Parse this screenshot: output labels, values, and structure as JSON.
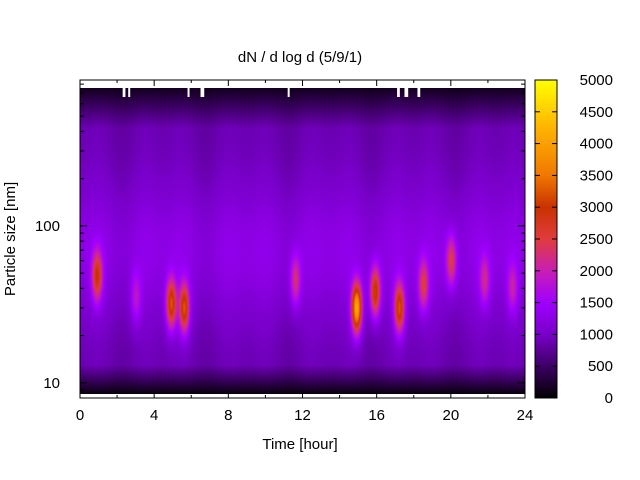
{
  "chart_data": {
    "type": "heatmap",
    "title": "dN / d log d (5/9/1)",
    "xlabel": "Time [hour]",
    "ylabel": "Particle size [nm]",
    "xlim": [
      0,
      24
    ],
    "xticks": [
      0,
      4,
      8,
      12,
      16,
      20,
      24
    ],
    "y_scale": "log",
    "ylim": [
      8,
      850
    ],
    "yticks": [
      10,
      100
    ],
    "colorbar": {
      "min": 0,
      "max": 5000,
      "ticks": [
        0,
        500,
        1000,
        1500,
        2000,
        2500,
        3000,
        3500,
        4000,
        4500,
        5000
      ],
      "colormap": [
        "#000000",
        "#3c0064",
        "#7800c8",
        "#a000ff",
        "#c81eb4",
        "#e03c3c",
        "#c83200",
        "#f07800",
        "#ffb400",
        "#ffff00"
      ]
    },
    "background_level": 1150,
    "hot_spots": [
      {
        "time": 0.9,
        "size_nm": 48,
        "value": 2900
      },
      {
        "time": 3.0,
        "size_nm": 35,
        "value": 1900
      },
      {
        "time": 4.9,
        "size_nm": 32,
        "value": 3300
      },
      {
        "time": 5.6,
        "size_nm": 30,
        "value": 3300
      },
      {
        "time": 11.6,
        "size_nm": 45,
        "value": 2300
      },
      {
        "time": 14.9,
        "size_nm": 30,
        "value": 4200
      },
      {
        "time": 15.9,
        "size_nm": 38,
        "value": 3200
      },
      {
        "time": 17.2,
        "size_nm": 30,
        "value": 3300
      },
      {
        "time": 18.5,
        "size_nm": 42,
        "value": 2500
      },
      {
        "time": 20.0,
        "size_nm": 60,
        "value": 2500
      },
      {
        "time": 21.8,
        "size_nm": 45,
        "value": 2100
      },
      {
        "time": 23.3,
        "size_nm": 40,
        "value": 2000
      }
    ]
  }
}
